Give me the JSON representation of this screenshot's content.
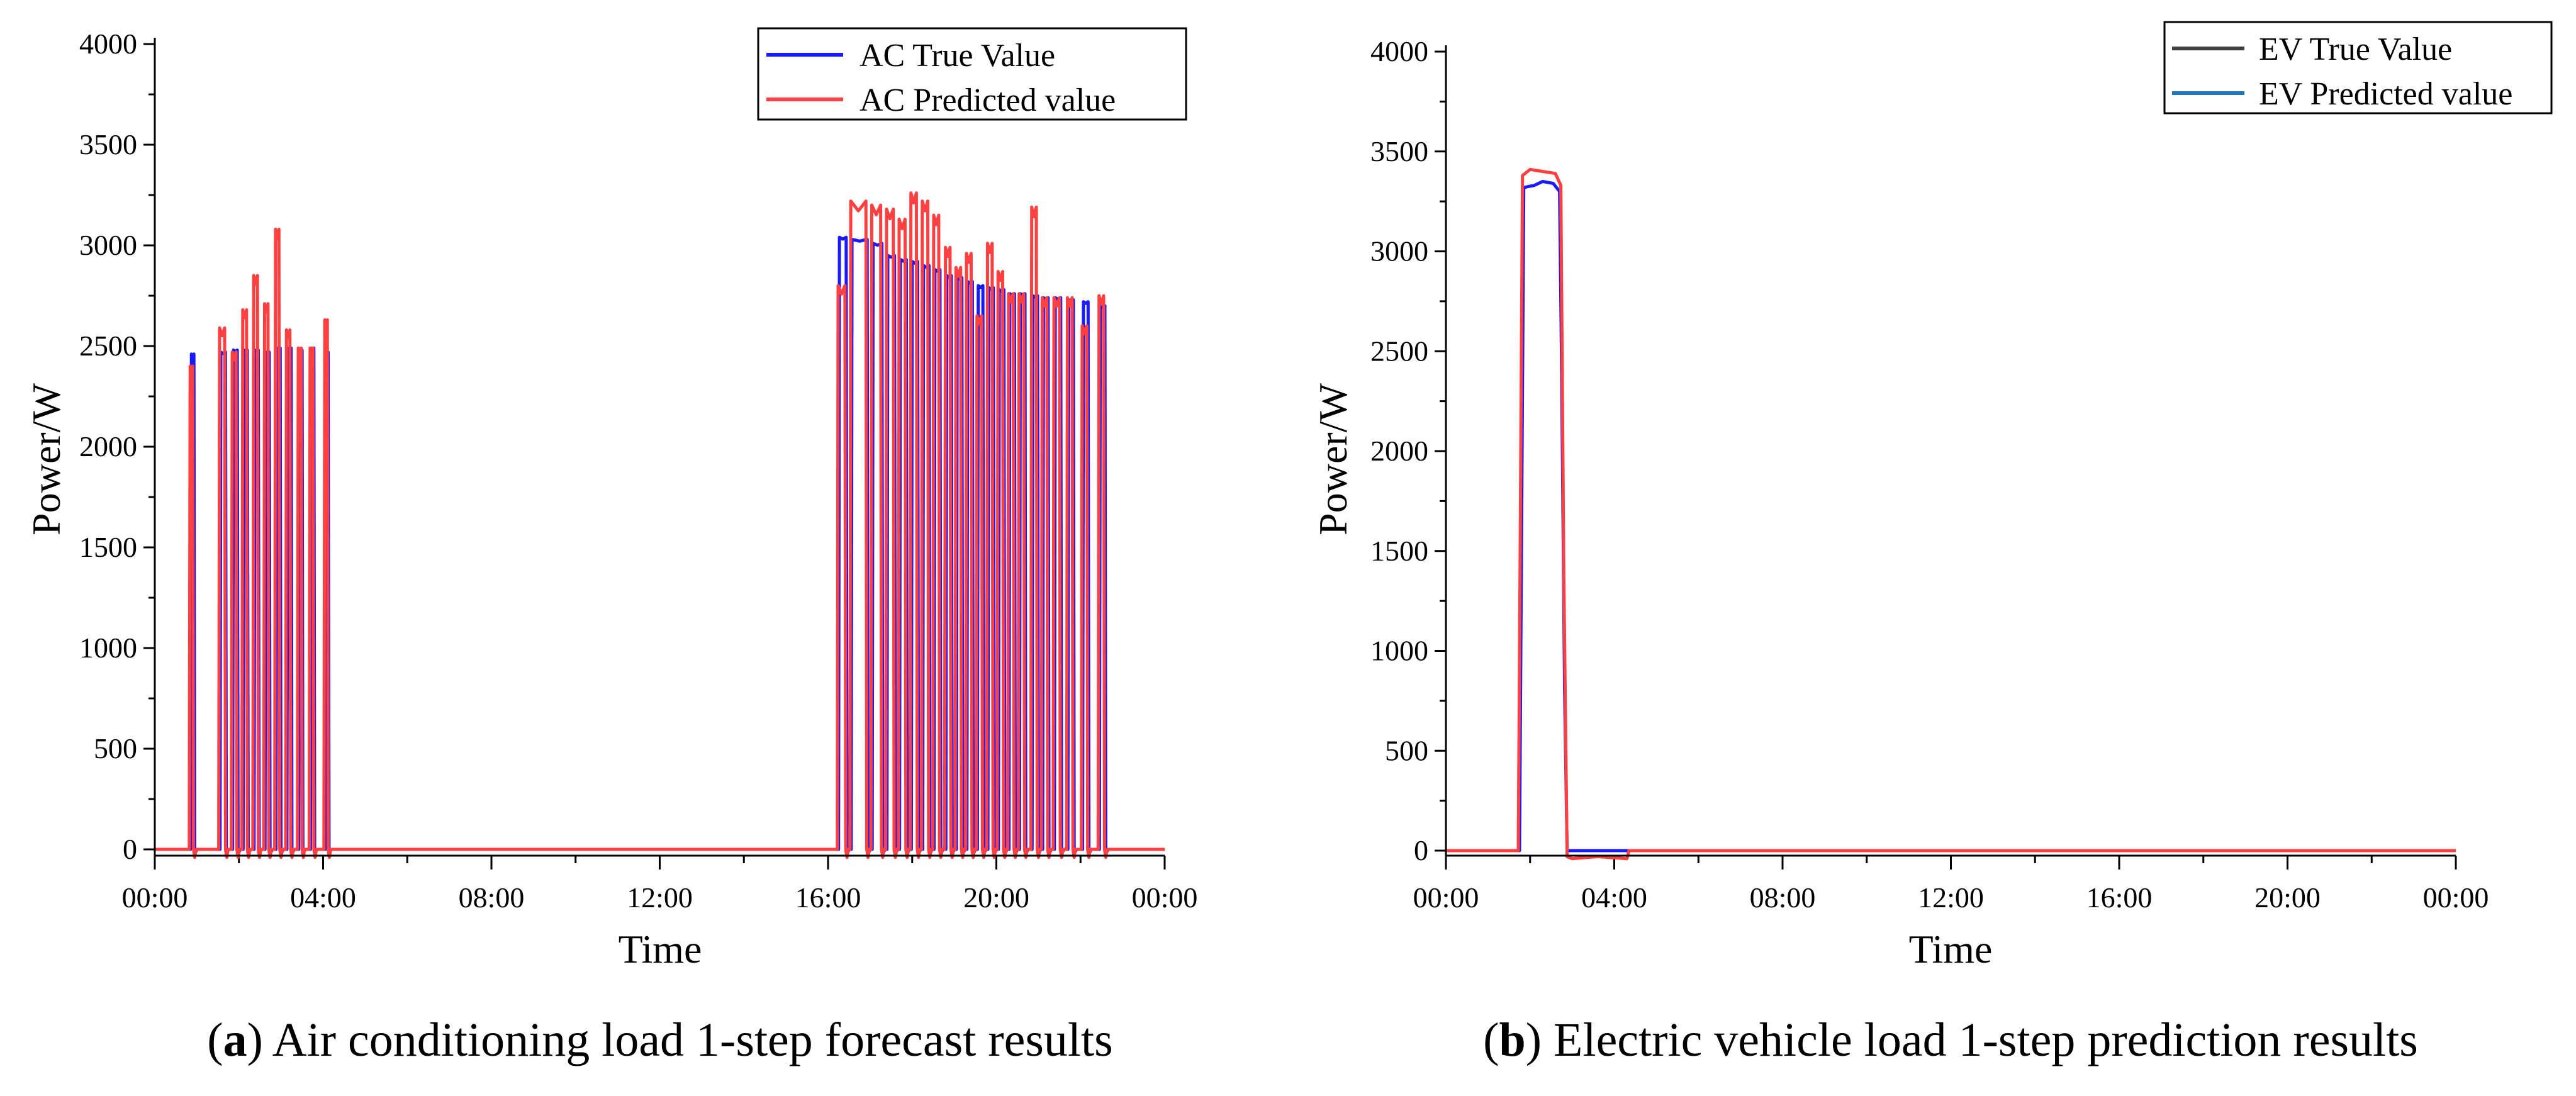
{
  "chart_data": [
    {
      "type": "line",
      "panel_letter": "a",
      "caption": "Air conditioning load 1-step forecast results",
      "xlabel": "Time",
      "ylabel": "Power/W",
      "xlim": [
        0,
        24
      ],
      "ylim": [
        0,
        4000
      ],
      "x_tick_labels": [
        "00:00",
        "04:00",
        "08:00",
        "12:00",
        "16:00",
        "20:00",
        "00:00"
      ],
      "x_tick_hours": [
        0,
        4,
        8,
        12,
        16,
        20,
        24
      ],
      "y_ticks": [
        0,
        500,
        1000,
        1500,
        2000,
        2500,
        3000,
        3500,
        4000
      ],
      "legend_position": "top-right",
      "series": [
        {
          "name": "AC True Value",
          "color": "#1a1aff",
          "pulses": [
            [
              0.85,
              0.95,
              2460
            ],
            [
              1.55,
              1.7,
              2470
            ],
            [
              1.85,
              1.98,
              2480
            ],
            [
              2.1,
              2.22,
              2480
            ],
            [
              2.36,
              2.48,
              2480
            ],
            [
              2.62,
              2.74,
              2470
            ],
            [
              2.88,
              3.0,
              2490
            ],
            [
              3.14,
              3.26,
              2490
            ],
            [
              3.42,
              3.52,
              2480
            ],
            [
              3.7,
              3.8,
              2490
            ],
            [
              4.05,
              4.14,
              2470
            ],
            [
              16.25,
              16.45,
              3040
            ],
            [
              16.55,
              16.95,
              3030
            ],
            [
              17.05,
              17.3,
              3010
            ],
            [
              17.4,
              17.6,
              2950
            ],
            [
              17.7,
              17.88,
              2930
            ],
            [
              17.98,
              18.15,
              2920
            ],
            [
              18.25,
              18.42,
              2900
            ],
            [
              18.52,
              18.68,
              2880
            ],
            [
              18.8,
              18.95,
              2850
            ],
            [
              19.05,
              19.2,
              2840
            ],
            [
              19.3,
              19.45,
              2820
            ],
            [
              19.55,
              19.7,
              2800
            ],
            [
              19.8,
              19.95,
              2790
            ],
            [
              20.05,
              20.2,
              2780
            ],
            [
              20.3,
              20.45,
              2760
            ],
            [
              20.55,
              20.7,
              2760
            ],
            [
              20.85,
              21.0,
              2750
            ],
            [
              21.1,
              21.25,
              2740
            ],
            [
              21.38,
              21.55,
              2740
            ],
            [
              21.7,
              21.85,
              2730
            ],
            [
              22.05,
              22.2,
              2720
            ],
            [
              22.45,
              22.6,
              2700
            ]
          ]
        },
        {
          "name": "AC Predicted value",
          "color": "#ff4040",
          "pulses": [
            [
              0.82,
              0.92,
              2400
            ],
            [
              1.52,
              1.68,
              2590
            ],
            [
              1.82,
              1.95,
              2470
            ],
            [
              2.07,
              2.2,
              2680
            ],
            [
              2.33,
              2.46,
              2850
            ],
            [
              2.59,
              2.71,
              2710
            ],
            [
              2.85,
              2.97,
              3080
            ],
            [
              3.11,
              3.23,
              2580
            ],
            [
              3.39,
              3.5,
              2490
            ],
            [
              3.67,
              3.78,
              2490
            ],
            [
              4.02,
              4.12,
              2630
            ],
            [
              16.22,
              16.42,
              2800
            ],
            [
              16.52,
              16.92,
              3220
            ],
            [
              17.02,
              17.27,
              3200
            ],
            [
              17.37,
              17.57,
              3180
            ],
            [
              17.67,
              17.85,
              3130
            ],
            [
              17.95,
              18.12,
              3260
            ],
            [
              18.22,
              18.39,
              3220
            ],
            [
              18.49,
              18.65,
              3150
            ],
            [
              18.77,
              18.92,
              2990
            ],
            [
              19.02,
              19.17,
              2890
            ],
            [
              19.27,
              19.42,
              2960
            ],
            [
              19.52,
              19.67,
              2650
            ],
            [
              19.77,
              19.92,
              3010
            ],
            [
              20.02,
              20.17,
              2870
            ],
            [
              20.27,
              20.42,
              2760
            ],
            [
              20.52,
              20.67,
              2760
            ],
            [
              20.82,
              20.97,
              3190
            ],
            [
              21.07,
              21.22,
              2740
            ],
            [
              21.35,
              21.52,
              2740
            ],
            [
              21.67,
              21.82,
              2740
            ],
            [
              22.02,
              22.17,
              2600
            ],
            [
              22.42,
              22.57,
              2750
            ]
          ]
        }
      ]
    },
    {
      "type": "line",
      "panel_letter": "b",
      "caption": "Electric vehicle load 1-step prediction results",
      "xlabel": "Time",
      "ylabel": "Power/W",
      "xlim": [
        0,
        24
      ],
      "ylim": [
        0,
        4000
      ],
      "x_tick_labels": [
        "00:00",
        "04:00",
        "08:00",
        "12:00",
        "16:00",
        "20:00",
        "00:00"
      ],
      "x_tick_hours": [
        0,
        4,
        8,
        12,
        16,
        20,
        24
      ],
      "y_ticks": [
        0,
        500,
        1000,
        1500,
        2000,
        2500,
        3000,
        3500,
        4000
      ],
      "legend_position": "top-right",
      "legend": [
        {
          "name": "EV True Value",
          "color": "#404040"
        },
        {
          "name": "EV Predicted value",
          "color": "#1f77c4"
        }
      ],
      "series": [
        {
          "name": "EV True Value (plotted)",
          "color": "#1a1aff",
          "points": [
            [
              0,
              0
            ],
            [
              1.75,
              0
            ],
            [
              1.85,
              3320
            ],
            [
              2.1,
              3330
            ],
            [
              2.3,
              3350
            ],
            [
              2.55,
              3340
            ],
            [
              2.7,
              3300
            ],
            [
              2.75,
              2400
            ],
            [
              2.82,
              800
            ],
            [
              2.88,
              0
            ],
            [
              24,
              0
            ]
          ]
        },
        {
          "name": "EV Predicted value (plotted)",
          "color": "#ff4040",
          "points": [
            [
              0,
              0
            ],
            [
              1.72,
              0
            ],
            [
              1.82,
              3380
            ],
            [
              2.0,
              3410
            ],
            [
              2.3,
              3400
            ],
            [
              2.6,
              3390
            ],
            [
              2.73,
              3330
            ],
            [
              2.8,
              1400
            ],
            [
              2.88,
              -30
            ],
            [
              3.0,
              -40
            ],
            [
              3.6,
              -30
            ],
            [
              4.3,
              -40
            ],
            [
              4.35,
              0
            ],
            [
              24,
              0
            ]
          ]
        }
      ]
    }
  ]
}
